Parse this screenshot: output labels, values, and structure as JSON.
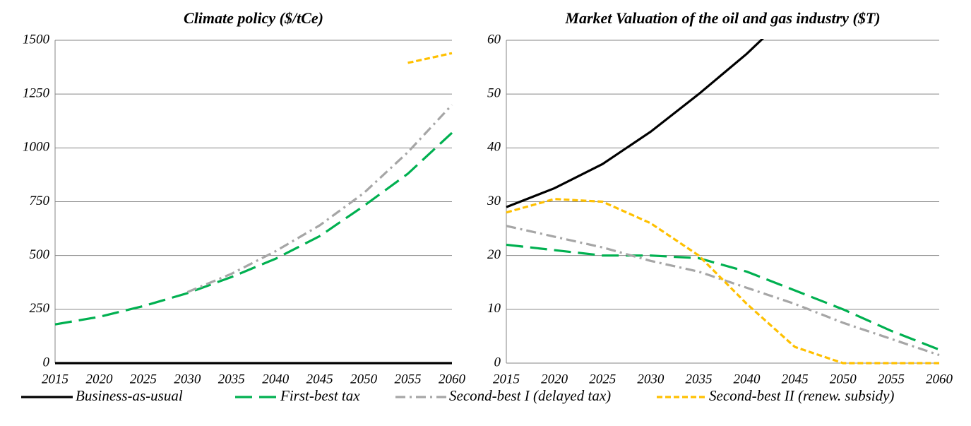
{
  "chart_data": [
    {
      "type": "line",
      "title": "Climate policy ($/tCe)",
      "x": [
        2015,
        2020,
        2025,
        2030,
        2035,
        2040,
        2045,
        2050,
        2055,
        2060
      ],
      "xlim": [
        2015,
        2060
      ],
      "xticks": [
        2015,
        2020,
        2025,
        2030,
        2035,
        2040,
        2045,
        2050,
        2055,
        2060
      ],
      "ylim": [
        0,
        1500
      ],
      "yticks": [
        0,
        250,
        500,
        750,
        1000,
        1250,
        1500
      ],
      "grid": true,
      "series": [
        {
          "name": "Business-as-usual",
          "color": "#000000",
          "dash": "solid",
          "values": [
            0,
            0,
            0,
            0,
            0,
            0,
            0,
            0,
            0,
            0
          ]
        },
        {
          "name": "First-best tax",
          "color": "#00b050",
          "dash": "long-dash",
          "values": [
            180,
            215,
            265,
            325,
            400,
            485,
            590,
            730,
            880,
            1070
          ]
        },
        {
          "name": "Second-best I (delayed tax)",
          "color": "#a6a6a6",
          "dash": "dash-dot",
          "values": [
            null,
            null,
            null,
            330,
            415,
            520,
            640,
            790,
            980,
            1200
          ]
        },
        {
          "name": "Second-best II (renew. subsidy)",
          "color": "#ffc000",
          "dash": "short-dash",
          "values": [
            null,
            null,
            null,
            null,
            null,
            null,
            null,
            null,
            1395,
            1440
          ]
        }
      ]
    },
    {
      "type": "line",
      "title": "Market Valuation of the oil and gas industry ($T)",
      "x": [
        2015,
        2020,
        2025,
        2030,
        2035,
        2040,
        2045,
        2050,
        2055,
        2060
      ],
      "xlim": [
        2015,
        2060
      ],
      "xticks": [
        2015,
        2020,
        2025,
        2030,
        2035,
        2040,
        2045,
        2050,
        2055,
        2060
      ],
      "ylim": [
        0,
        60
      ],
      "yticks": [
        0,
        10,
        20,
        30,
        40,
        50,
        60
      ],
      "grid": true,
      "series": [
        {
          "name": "Business-as-usual",
          "color": "#000000",
          "dash": "solid",
          "values": [
            29,
            32.5,
            37,
            43,
            50,
            57.5,
            66,
            null,
            null,
            null
          ]
        },
        {
          "name": "First-best tax",
          "color": "#00b050",
          "dash": "long-dash",
          "values": [
            22,
            21,
            20,
            20,
            19.5,
            17,
            13.5,
            10,
            6,
            2.5
          ]
        },
        {
          "name": "Second-best I (delayed tax)",
          "color": "#a6a6a6",
          "dash": "dash-dot",
          "values": [
            25.5,
            23.5,
            21.5,
            19,
            17,
            14,
            11,
            7.5,
            4.5,
            1.5
          ]
        },
        {
          "name": "Second-best II (renew. subsidy)",
          "color": "#ffc000",
          "dash": "short-dash",
          "values": [
            28,
            30.5,
            30,
            26,
            20,
            11,
            3,
            0,
            0,
            0
          ]
        }
      ]
    }
  ]
}
